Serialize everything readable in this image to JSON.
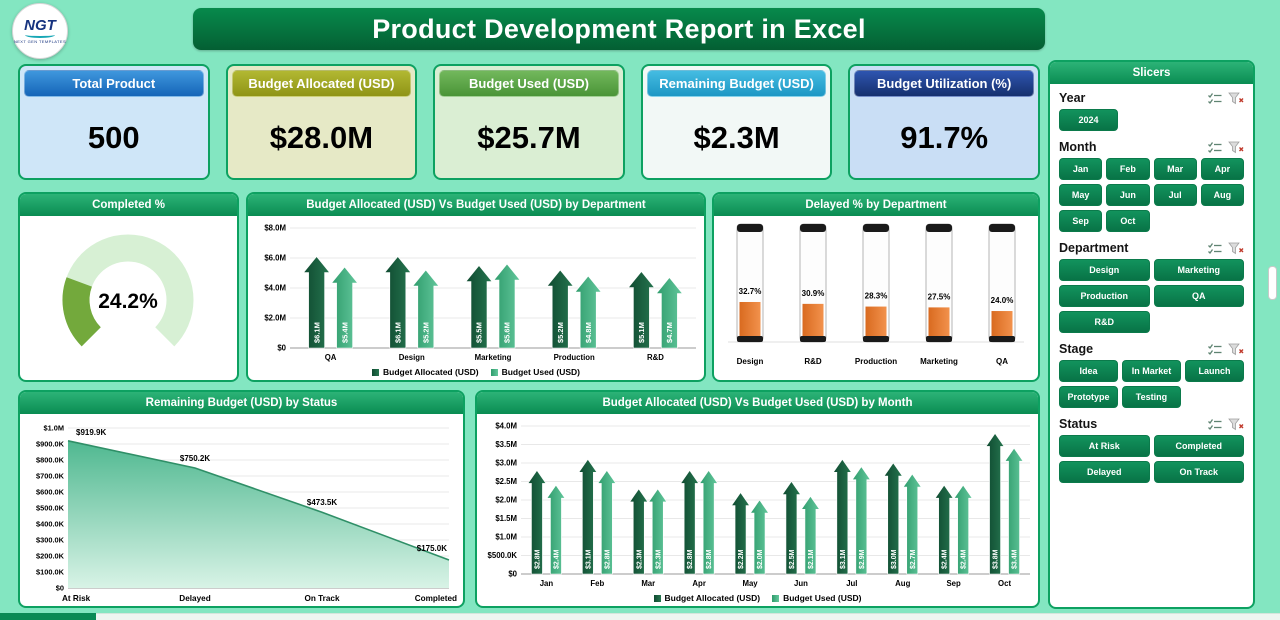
{
  "header": {
    "title": "Product Development Report in Excel",
    "logo_text": "NGT",
    "logo_sub": "NEXT GEN TEMPLATES"
  },
  "kpis": [
    {
      "label": "Total Product",
      "value": "500",
      "header_from": "#3f97dd",
      "header_to": "#1565b8",
      "body": "#cfe6f8"
    },
    {
      "label": "Budget Allocated (USD)",
      "value": "$28.0M",
      "header_from": "#b2b832",
      "header_to": "#8f9416",
      "body": "#e6e9c6"
    },
    {
      "label": "Budget Used (USD)",
      "value": "$25.7M",
      "header_from": "#72b85c",
      "header_to": "#4a9437",
      "body": "#daeed3"
    },
    {
      "label": "Remaining Budget (USD)",
      "value": "$2.3M",
      "header_from": "#45bce2",
      "header_to": "#1d97c4",
      "body": "#f2f8f6"
    },
    {
      "label": "Budget Utilization (%)",
      "value": "91.7%",
      "header_from": "#2e55b0",
      "header_to": "#16306e",
      "body": "#c9def5"
    }
  ],
  "chart_data": [
    {
      "type": "donut",
      "title": "Completed %",
      "value": 24.2,
      "max": 100,
      "label": "24.2%",
      "fill_color": "#73a93c",
      "track_color": "#d7f0d4"
    },
    {
      "type": "bar",
      "title": "Budget Allocated (USD) Vs Budget Used (USD) by Department",
      "categories": [
        "QA",
        "Design",
        "Marketing",
        "Production",
        "R&D"
      ],
      "series": [
        {
          "name": "Budget Allocated (USD)",
          "color_from": "#0f4a30",
          "color_to": "#26754f",
          "values": [
            6.1,
            6.1,
            5.5,
            5.2,
            5.1
          ],
          "labels": [
            "$6.1M",
            "$6.1M",
            "$5.5M",
            "$5.2M",
            "$5.1M"
          ]
        },
        {
          "name": "Budget Used (USD)",
          "color_from": "#2f9c6c",
          "color_to": "#63c79c",
          "values": [
            5.4,
            5.2,
            5.6,
            4.8,
            4.7
          ],
          "labels": [
            "$5.4M",
            "$5.2M",
            "$5.6M",
            "$4.8M",
            "$4.7M"
          ]
        }
      ],
      "unit": "M USD",
      "ylim": [
        0,
        8
      ],
      "yticks": [
        "$0",
        "$2.0M",
        "$4.0M",
        "$6.0M",
        "$8.0M"
      ],
      "grid": true,
      "legend_position": "bottom"
    },
    {
      "type": "bar",
      "title": "Delayed % by Department",
      "categories": [
        "Design",
        "R&D",
        "Production",
        "Marketing",
        "QA"
      ],
      "values": [
        32.7,
        30.9,
        28.3,
        27.5,
        24.0
      ],
      "labels": [
        "32.7%",
        "30.9%",
        "28.3%",
        "27.5%",
        "24.0%"
      ],
      "fill_color": "#e1762f",
      "ylim": [
        0,
        100
      ],
      "style": "thermometer"
    },
    {
      "type": "area",
      "title": "Remaining Budget (USD) by Status",
      "categories": [
        "At Risk",
        "Delayed",
        "On Track",
        "Completed"
      ],
      "values": [
        919.9,
        750.2,
        473.5,
        175.0
      ],
      "labels": [
        "$919.9K",
        "$750.2K",
        "$473.5K",
        "$175.0K"
      ],
      "unit": "K USD",
      "ylim": [
        0,
        1000
      ],
      "yticks": [
        "$0",
        "$100.0K",
        "$200.0K",
        "$300.0K",
        "$400.0K",
        "$500.0K",
        "$600.0K",
        "$700.0K",
        "$800.0K",
        "$900.0K",
        "$1.0M"
      ],
      "fill_from": "#4fb890",
      "fill_to": "#d8f3e6",
      "line_color": "#2f8f67",
      "grid": true
    },
    {
      "type": "bar",
      "title": "Budget Allocated (USD) Vs Budget Used (USD) by Month",
      "categories": [
        "Jan",
        "Feb",
        "Mar",
        "Apr",
        "May",
        "Jun",
        "Jul",
        "Aug",
        "Sep",
        "Oct"
      ],
      "series": [
        {
          "name": "Budget Allocated (USD)",
          "color_from": "#0f4a30",
          "color_to": "#26754f",
          "values": [
            2.8,
            3.1,
            2.3,
            2.8,
            2.2,
            2.5,
            3.1,
            3.0,
            2.4,
            3.8
          ],
          "labels": [
            "$2.8M",
            "$3.1M",
            "$2.3M",
            "$2.8M",
            "$2.2M",
            "$2.5M",
            "$3.1M",
            "$3.0M",
            "$2.4M",
            "$3.8M"
          ]
        },
        {
          "name": "Budget Used (USD)",
          "color_from": "#2f9c6c",
          "color_to": "#63c79c",
          "values": [
            2.4,
            2.8,
            2.3,
            2.8,
            2.0,
            2.1,
            2.9,
            2.7,
            2.4,
            3.4
          ],
          "labels": [
            "$2.4M",
            "$2.8M",
            "$2.3M",
            "$2.8M",
            "$2.0M",
            "$2.1M",
            "$2.9M",
            "$2.7M",
            "$2.4M",
            "$3.4M"
          ]
        }
      ],
      "unit": "M USD",
      "ylim": [
        0,
        4
      ],
      "yticks": [
        "$0",
        "$500.0K",
        "$1.0M",
        "$1.5M",
        "$2.0M",
        "$2.5M",
        "$3.0M",
        "$3.5M",
        "$4.0M"
      ],
      "grid": true,
      "legend_position": "bottom"
    }
  ],
  "slicers": {
    "title": "Slicers",
    "button_color": "#0e8a55",
    "sections": [
      {
        "label": "Year",
        "cols": 3,
        "items": [
          "2024"
        ]
      },
      {
        "label": "Month",
        "cols": 4,
        "items": [
          "Jan",
          "Feb",
          "Mar",
          "Apr",
          "May",
          "Jun",
          "Jul",
          "Aug",
          "Sep",
          "Oct"
        ]
      },
      {
        "label": "Department",
        "cols": 2,
        "items": [
          "Design",
          "Marketing",
          "Production",
          "QA",
          "R&D"
        ]
      },
      {
        "label": "Stage",
        "cols": 3,
        "items": [
          "Idea",
          "In Market",
          "Launch",
          "Prototype",
          "Testing"
        ]
      },
      {
        "label": "Status",
        "cols": 2,
        "items": [
          "At Risk",
          "Completed",
          "Delayed",
          "On Track"
        ]
      }
    ]
  },
  "colors": {
    "background": "#83e6c1",
    "banner": "#057a42",
    "panel_border": "#0da161",
    "panel_header": "#0a8c52"
  }
}
